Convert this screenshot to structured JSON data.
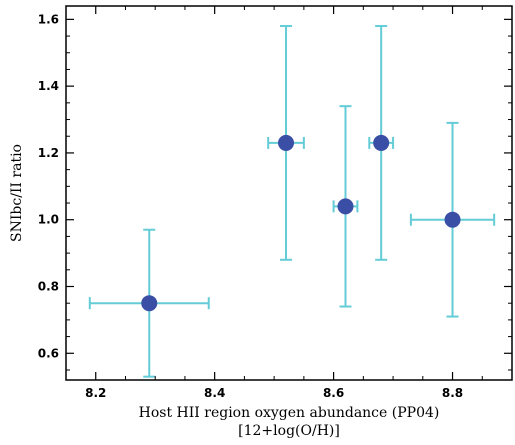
{
  "chart_data": {
    "type": "scatter",
    "title": "",
    "xlabel": "Host HII region oxygen abundance (PP04)",
    "xlabel_line2": "[12+log(O/H)]",
    "ylabel": "SNIbc/II ratio",
    "xlim": [
      8.15,
      8.9
    ],
    "ylim": [
      0.52,
      1.64
    ],
    "xticks": [
      "8.2",
      "8.4",
      "8.6",
      "8.8"
    ],
    "yticks": [
      "0.6",
      "0.8",
      "1.0",
      "1.2",
      "1.4",
      "1.6"
    ],
    "grid": false,
    "points": [
      {
        "x": 8.29,
        "y": 0.75,
        "xerr": [
          8.19,
          8.39
        ],
        "yerr": [
          0.53,
          0.97
        ]
      },
      {
        "x": 8.52,
        "y": 1.23,
        "xerr": [
          8.49,
          8.55
        ],
        "yerr": [
          0.88,
          1.58
        ]
      },
      {
        "x": 8.62,
        "y": 1.04,
        "xerr": [
          8.6,
          8.64
        ],
        "yerr": [
          0.74,
          1.34
        ]
      },
      {
        "x": 8.68,
        "y": 1.23,
        "xerr": [
          8.66,
          8.7
        ],
        "yerr": [
          0.88,
          1.58
        ]
      },
      {
        "x": 8.8,
        "y": 1.0,
        "xerr": [
          8.73,
          8.87
        ],
        "yerr": [
          0.71,
          1.29
        ]
      }
    ],
    "colors": {
      "marker": "#3a4ea6",
      "errorbar": "#63ccd6",
      "axis": "#000000"
    }
  }
}
